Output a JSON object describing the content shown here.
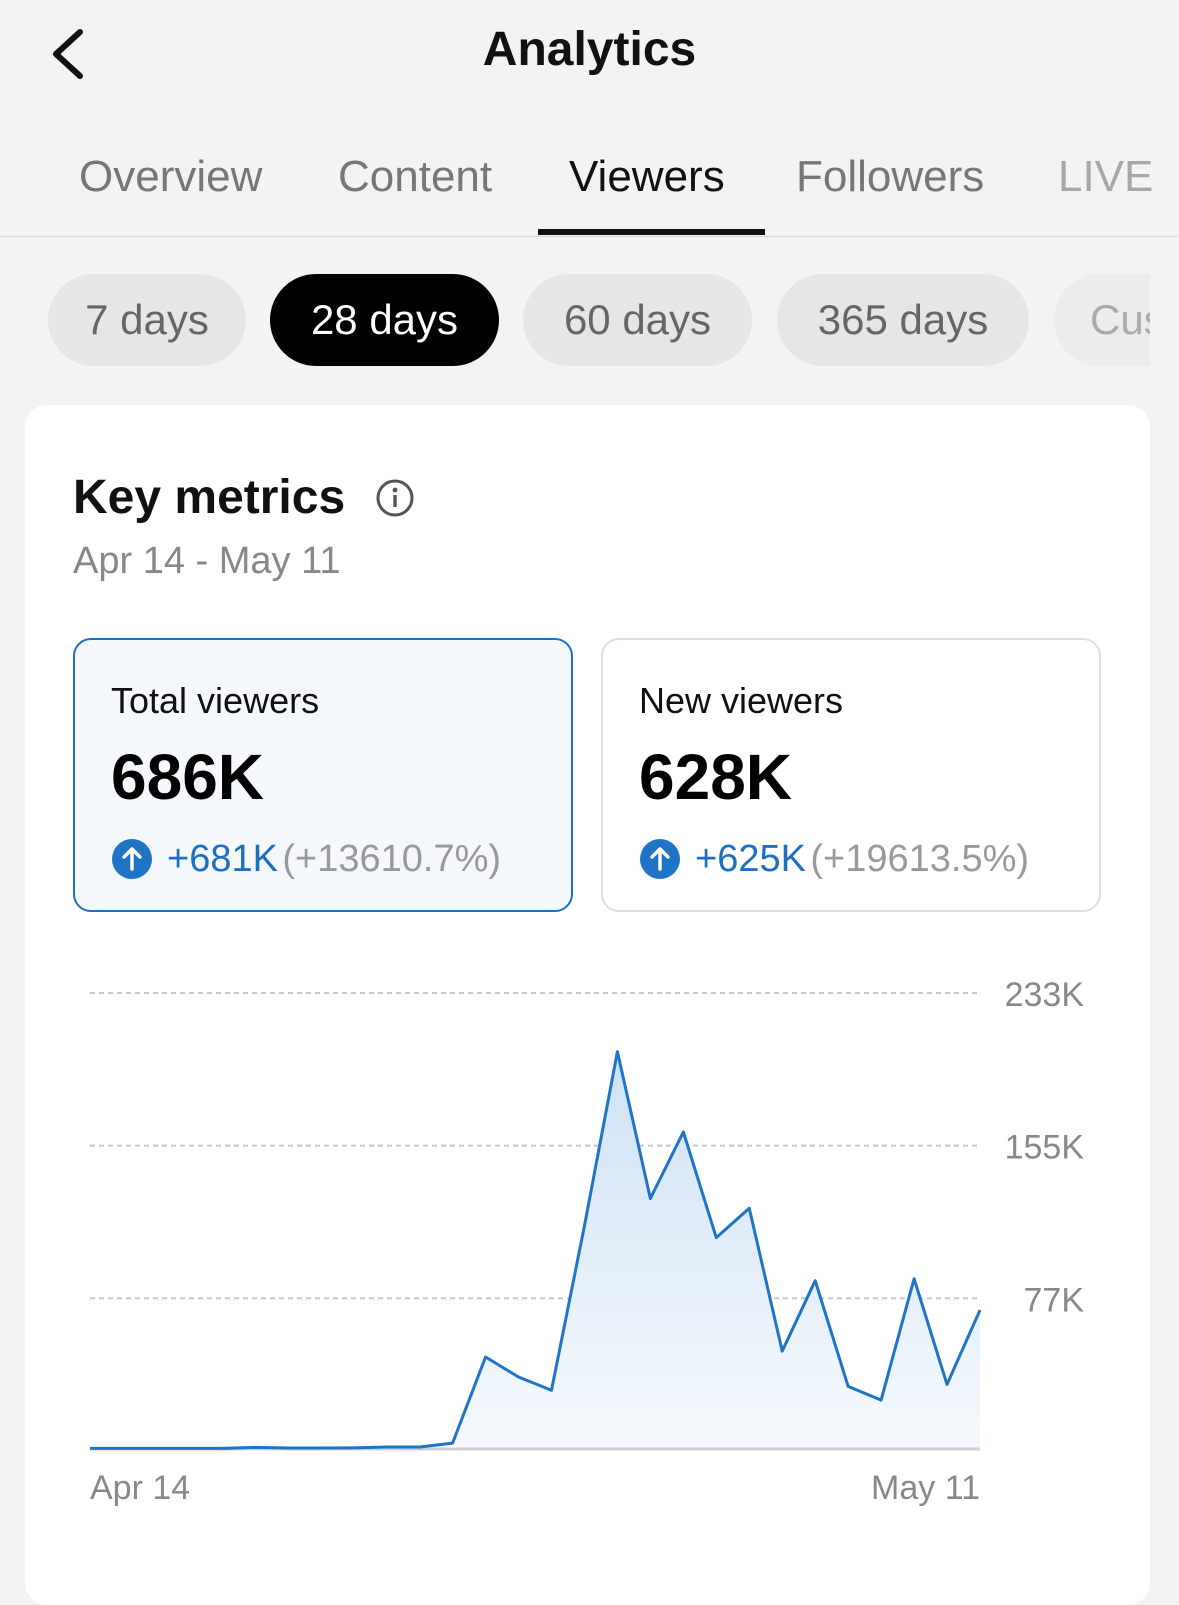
{
  "header": {
    "title": "Analytics"
  },
  "tabs": [
    "Overview",
    "Content",
    "Viewers",
    "Followers",
    "LIVE"
  ],
  "periods": [
    "7 days",
    "28 days",
    "60 days",
    "365 days",
    "Cus"
  ],
  "section": {
    "title": "Key metrics",
    "date_range": "Apr 14 - May 11"
  },
  "metrics": [
    {
      "label": "Total viewers",
      "value": "686K",
      "change": "+681K",
      "percent": "(+13610.7%)"
    },
    {
      "label": "New viewers",
      "value": "628K",
      "change": "+625K",
      "percent": "(+19613.5%)"
    }
  ],
  "chart_data": {
    "type": "area",
    "color": "#1f74c6",
    "categories": [
      "Apr 14",
      null,
      null,
      null,
      null,
      null,
      null,
      null,
      null,
      null,
      null,
      null,
      null,
      null,
      null,
      null,
      null,
      null,
      null,
      null,
      null,
      null,
      null,
      null,
      null,
      null,
      null,
      "May 11"
    ],
    "values": [
      300,
      300,
      300,
      300,
      300,
      800,
      500,
      500,
      600,
      1000,
      1000,
      3000,
      47000,
      36800,
      30000,
      114000,
      203000,
      128000,
      162000,
      108000,
      123000,
      50000,
      86000,
      32000,
      25000,
      87000,
      33000,
      71000
    ],
    "ylim": [
      0,
      233000
    ],
    "yticks": [
      {
        "value": 77000,
        "label": "77K"
      },
      {
        "value": 155000,
        "label": "155K"
      },
      {
        "value": 233000,
        "label": "233K"
      }
    ],
    "grid": true
  }
}
